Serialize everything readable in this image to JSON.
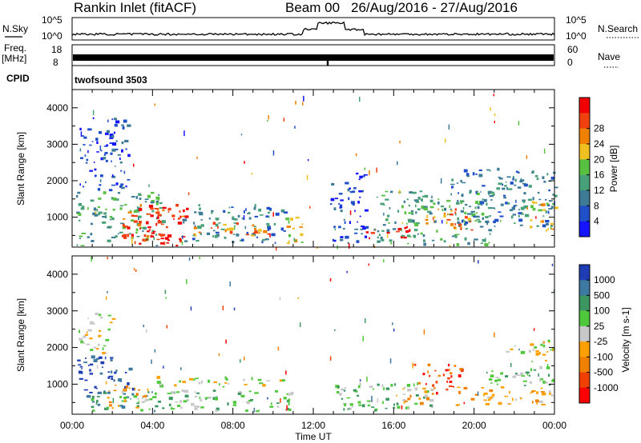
{
  "header": {
    "station": "Rankin Inlet (fitACF)",
    "beam": "Beam 00",
    "date_range": "26/Aug/2016 - 27/Aug/2016"
  },
  "noise_panel": {
    "left_label": "N.Sky",
    "right_label": "N.Search",
    "ticks": [
      "10^5",
      "10^0"
    ]
  },
  "freq_panel": {
    "left_label": "Freq.",
    "left_unit": "[MHz]",
    "left_ticks": [
      "18",
      "8"
    ],
    "right_label": "Nave",
    "right_ticks": [
      "60",
      "0"
    ]
  },
  "cpid": {
    "label": "CPID",
    "value": "twofsound 3503"
  },
  "chart_data": [
    {
      "type": "heatmap",
      "parameter": "Power",
      "ylabel": "Slant Range [km]",
      "xlabel": "Time UT",
      "ylim": [
        180,
        4500
      ],
      "yticks": [
        1000,
        2000,
        3000,
        4000
      ],
      "x_ticks": [
        "00:00",
        "04:00",
        "08:00",
        "12:00",
        "16:00",
        "20:00",
        "00:00"
      ],
      "colorbar": {
        "label": "Power [dB]",
        "ticks": [
          4,
          8,
          12,
          16,
          20,
          24,
          28
        ],
        "colors": [
          "#1414ff",
          "#2050c8",
          "#3c7a96",
          "#48a078",
          "#58c040",
          "#f0c020",
          "#f08000",
          "#f04010",
          "#f00000"
        ]
      },
      "regions": [
        {
          "t0": 0.2,
          "t1": 4.5,
          "r0": 200,
          "r1": 1650,
          "level": 4
        },
        {
          "t0": 0.3,
          "t1": 2.8,
          "r0": 1700,
          "r1": 3700,
          "level": 2
        },
        {
          "t0": 2.4,
          "t1": 5.8,
          "r0": 200,
          "r1": 1300,
          "level": 8
        },
        {
          "t0": 3.3,
          "t1": 4.8,
          "r0": 250,
          "r1": 1200,
          "level": 9
        },
        {
          "t0": 5.5,
          "t1": 10.6,
          "r0": 250,
          "r1": 1300,
          "level": 3
        },
        {
          "t0": 6.0,
          "t1": 10.0,
          "r0": 450,
          "r1": 800,
          "level": 7
        },
        {
          "t0": 10.5,
          "t1": 11.7,
          "r0": 250,
          "r1": 1000,
          "level": 6
        },
        {
          "t0": 12.8,
          "t1": 14.6,
          "r0": 250,
          "r1": 2200,
          "level": 2
        },
        {
          "t0": 14.5,
          "t1": 16.8,
          "r0": 350,
          "r1": 700,
          "level": 9
        },
        {
          "t0": 15.0,
          "t1": 21.0,
          "r0": 200,
          "r1": 1700,
          "level": 4
        },
        {
          "t0": 17.5,
          "t1": 20.0,
          "r0": 600,
          "r1": 1250,
          "level": 7
        },
        {
          "t0": 18.8,
          "t1": 24.0,
          "r0": 700,
          "r1": 2300,
          "level": 3
        },
        {
          "t0": 22.5,
          "t1": 24.0,
          "r0": 600,
          "r1": 1400,
          "level": 6
        }
      ]
    },
    {
      "type": "heatmap",
      "parameter": "Velocity",
      "ylabel": "Slant Range [km]",
      "xlabel": "Time UT",
      "ylim": [
        180,
        4500
      ],
      "yticks": [
        1000,
        2000,
        3000,
        4000
      ],
      "x_ticks": [
        "00:00",
        "04:00",
        "08:00",
        "12:00",
        "16:00",
        "20:00",
        "00:00"
      ],
      "colorbar": {
        "label": "Velocity [m s-1]",
        "ticks": [
          1000,
          500,
          100,
          25,
          -25,
          -100,
          -500,
          -1000
        ],
        "colors": [
          "#1e3cb4",
          "#3c78a0",
          "#3c9660",
          "#50c83c",
          "#c8c8c8",
          "#ffa000",
          "#f08000",
          "#f04000",
          "#ff0000"
        ]
      },
      "regions": [
        {
          "t0": 0.2,
          "t1": 3.0,
          "r0": 700,
          "r1": 1700,
          "level": 1
        },
        {
          "t0": 0.3,
          "t1": 2.0,
          "r0": 1800,
          "r1": 2900,
          "level": 5
        },
        {
          "t0": 0.5,
          "t1": 5.0,
          "r0": 200,
          "r1": 800,
          "level": 3
        },
        {
          "t0": 1.5,
          "t1": 4.0,
          "r0": 300,
          "r1": 900,
          "level": 6
        },
        {
          "t0": 4.0,
          "t1": 11.0,
          "r0": 900,
          "r1": 1150,
          "level": 5
        },
        {
          "t0": 4.5,
          "t1": 11.0,
          "r0": 200,
          "r1": 800,
          "level": 4
        },
        {
          "t0": 13.0,
          "t1": 18.0,
          "r0": 250,
          "r1": 1000,
          "level": 4
        },
        {
          "t0": 16.0,
          "t1": 18.0,
          "r0": 400,
          "r1": 900,
          "level": 6
        },
        {
          "t0": 17.0,
          "t1": 19.5,
          "r0": 700,
          "r1": 1500,
          "level": 8
        },
        {
          "t0": 19.0,
          "t1": 24.0,
          "r0": 400,
          "r1": 900,
          "level": 6
        },
        {
          "t0": 20.5,
          "t1": 24.0,
          "r0": 900,
          "r1": 1500,
          "level": 4
        },
        {
          "t0": 21.5,
          "t1": 24.0,
          "r0": 1600,
          "r1": 2200,
          "level": 5
        }
      ]
    }
  ]
}
